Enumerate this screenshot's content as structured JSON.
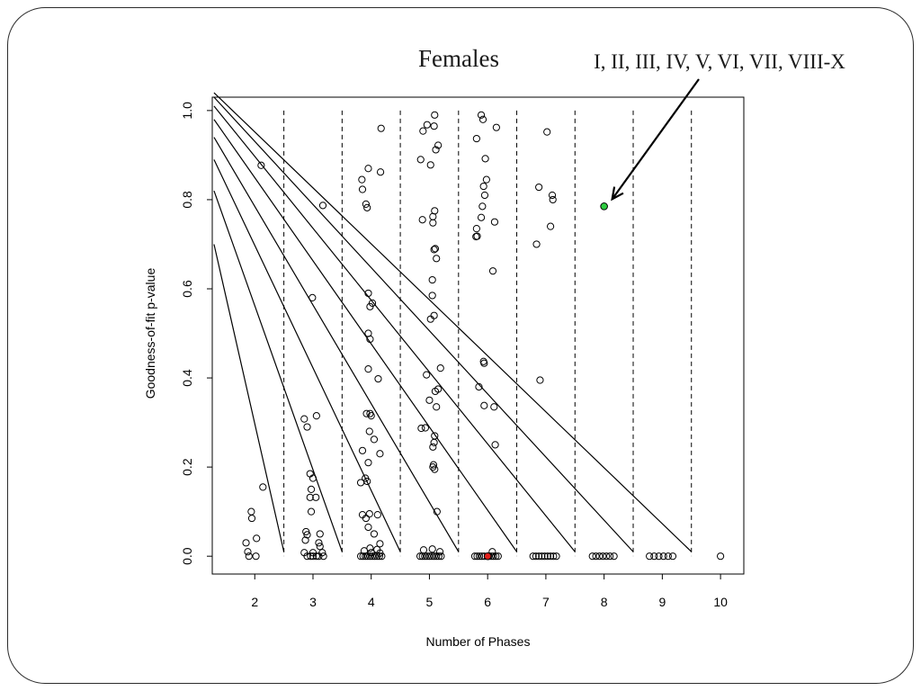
{
  "slide": {
    "title": "Females",
    "annotation": "I, II, III, IV, V, VI, VII, VIII-X"
  },
  "colors": {
    "highlight_green": "#2ecc40",
    "highlight_red": "#e0201b",
    "ink": "#000000",
    "frame": "#2b2b2b"
  },
  "chart_data": {
    "type": "scatter",
    "title": "",
    "xlabel": "Number of Phases",
    "ylabel": "Goodness-of-fit p-value",
    "xlim": [
      1.27,
      10.4
    ],
    "ylim": [
      -0.04,
      1.03
    ],
    "x_ticks": [
      2,
      3,
      4,
      5,
      6,
      7,
      8,
      9,
      10
    ],
    "y_ticks": [
      0.0,
      0.2,
      0.4,
      0.6,
      0.8,
      1.0
    ],
    "y_tick_labels": [
      "0.0",
      "0.2",
      "0.4",
      "0.6",
      "0.8",
      "1.0"
    ],
    "grid": false,
    "legend": "none",
    "dashed_vlines": [
      2.5,
      3.5,
      4.5,
      5.5,
      6.5,
      7.5,
      8.5,
      9.5
    ],
    "diagonal_lines": [
      {
        "x1": 1.3,
        "y1": 0.7,
        "x2": 2.5,
        "y2": 0.01
      },
      {
        "x1": 1.3,
        "y1": 0.82,
        "x2": 3.5,
        "y2": 0.01
      },
      {
        "x1": 1.3,
        "y1": 0.89,
        "x2": 4.5,
        "y2": 0.01
      },
      {
        "x1": 1.3,
        "y1": 0.94,
        "x2": 5.5,
        "y2": 0.01
      },
      {
        "x1": 1.3,
        "y1": 0.98,
        "x2": 6.5,
        "y2": 0.01
      },
      {
        "x1": 1.3,
        "y1": 1.01,
        "x2": 7.5,
        "y2": 0.01
      },
      {
        "x1": 1.3,
        "y1": 1.03,
        "x2": 8.5,
        "y2": 0.01
      },
      {
        "x1": 1.3,
        "y1": 1.04,
        "x2": 9.5,
        "y2": 0.01
      }
    ],
    "points": [
      [
        2.11,
        0.877
      ],
      [
        2.14,
        0.155
      ],
      [
        1.94,
        0.1
      ],
      [
        1.95,
        0.085
      ],
      [
        2.03,
        0.04
      ],
      [
        1.85,
        0.03
      ],
      [
        1.88,
        0.01
      ],
      [
        1.9,
        0.0
      ],
      [
        2.02,
        0.0
      ],
      [
        3.17,
        0.787
      ],
      [
        2.99,
        0.58
      ],
      [
        3.06,
        0.315
      ],
      [
        2.85,
        0.308
      ],
      [
        2.9,
        0.29
      ],
      [
        2.95,
        0.185
      ],
      [
        3.0,
        0.175
      ],
      [
        2.97,
        0.15
      ],
      [
        2.95,
        0.132
      ],
      [
        3.05,
        0.132
      ],
      [
        2.97,
        0.1
      ],
      [
        2.88,
        0.055
      ],
      [
        2.9,
        0.048
      ],
      [
        3.12,
        0.05
      ],
      [
        2.87,
        0.036
      ],
      [
        3.1,
        0.03
      ],
      [
        3.12,
        0.022
      ],
      [
        2.85,
        0.008
      ],
      [
        3.0,
        0.008
      ],
      [
        3.16,
        0.008
      ],
      [
        2.9,
        0.0
      ],
      [
        2.96,
        0.0
      ],
      [
        3.0,
        0.0
      ],
      [
        3.06,
        0.0
      ],
      [
        3.1,
        0.0
      ],
      [
        3.18,
        0.0
      ],
      [
        4.17,
        0.96
      ],
      [
        3.95,
        0.87
      ],
      [
        4.16,
        0.862
      ],
      [
        3.84,
        0.845
      ],
      [
        3.85,
        0.823
      ],
      [
        3.91,
        0.79
      ],
      [
        3.93,
        0.782
      ],
      [
        3.95,
        0.59
      ],
      [
        4.02,
        0.568
      ],
      [
        3.98,
        0.56
      ],
      [
        3.95,
        0.5
      ],
      [
        3.98,
        0.487
      ],
      [
        3.95,
        0.42
      ],
      [
        4.12,
        0.398
      ],
      [
        3.92,
        0.32
      ],
      [
        3.98,
        0.32
      ],
      [
        4.0,
        0.315
      ],
      [
        3.97,
        0.28
      ],
      [
        4.05,
        0.262
      ],
      [
        3.85,
        0.237
      ],
      [
        4.15,
        0.23
      ],
      [
        3.95,
        0.21
      ],
      [
        3.9,
        0.175
      ],
      [
        3.93,
        0.168
      ],
      [
        3.82,
        0.165
      ],
      [
        3.97,
        0.095
      ],
      [
        3.85,
        0.093
      ],
      [
        3.91,
        0.085
      ],
      [
        4.11,
        0.093
      ],
      [
        3.95,
        0.065
      ],
      [
        4.05,
        0.05
      ],
      [
        4.15,
        0.028
      ],
      [
        3.98,
        0.018
      ],
      [
        4.1,
        0.015
      ],
      [
        3.88,
        0.012
      ],
      [
        4.0,
        0.008
      ],
      [
        4.15,
        0.007
      ],
      [
        3.82,
        0.0
      ],
      [
        3.86,
        0.0
      ],
      [
        3.9,
        0.0
      ],
      [
        3.94,
        0.0
      ],
      [
        3.98,
        0.0
      ],
      [
        4.02,
        0.0
      ],
      [
        4.06,
        0.0
      ],
      [
        4.1,
        0.0
      ],
      [
        4.14,
        0.0
      ],
      [
        4.18,
        0.0
      ],
      [
        5.09,
        0.99
      ],
      [
        4.96,
        0.968
      ],
      [
        5.08,
        0.965
      ],
      [
        4.89,
        0.954
      ],
      [
        5.15,
        0.922
      ],
      [
        5.11,
        0.912
      ],
      [
        4.85,
        0.89
      ],
      [
        5.02,
        0.878
      ],
      [
        5.09,
        0.775
      ],
      [
        5.06,
        0.762
      ],
      [
        4.88,
        0.755
      ],
      [
        5.06,
        0.748
      ],
      [
        5.1,
        0.69
      ],
      [
        5.08,
        0.688
      ],
      [
        5.12,
        0.668
      ],
      [
        5.05,
        0.62
      ],
      [
        5.05,
        0.585
      ],
      [
        5.08,
        0.54
      ],
      [
        5.02,
        0.532
      ],
      [
        5.19,
        0.422
      ],
      [
        4.95,
        0.407
      ],
      [
        5.1,
        0.37
      ],
      [
        5.15,
        0.375
      ],
      [
        5.0,
        0.35
      ],
      [
        5.12,
        0.335
      ],
      [
        4.93,
        0.288
      ],
      [
        4.86,
        0.287
      ],
      [
        5.09,
        0.27
      ],
      [
        5.08,
        0.255
      ],
      [
        5.06,
        0.245
      ],
      [
        5.07,
        0.205
      ],
      [
        5.06,
        0.2
      ],
      [
        5.09,
        0.195
      ],
      [
        5.13,
        0.1
      ],
      [
        5.05,
        0.016
      ],
      [
        4.9,
        0.014
      ],
      [
        5.18,
        0.01
      ],
      [
        4.84,
        0.0
      ],
      [
        4.88,
        0.0
      ],
      [
        4.92,
        0.0
      ],
      [
        4.96,
        0.0
      ],
      [
        5.0,
        0.0
      ],
      [
        5.04,
        0.0
      ],
      [
        5.08,
        0.0
      ],
      [
        5.12,
        0.0
      ],
      [
        5.16,
        0.0
      ],
      [
        5.2,
        0.0
      ],
      [
        5.89,
        0.99
      ],
      [
        5.92,
        0.98
      ],
      [
        6.15,
        0.962
      ],
      [
        5.81,
        0.937
      ],
      [
        5.96,
        0.892
      ],
      [
        5.98,
        0.845
      ],
      [
        5.93,
        0.83
      ],
      [
        5.95,
        0.81
      ],
      [
        5.91,
        0.785
      ],
      [
        5.89,
        0.76
      ],
      [
        6.12,
        0.75
      ],
      [
        5.81,
        0.735
      ],
      [
        5.82,
        0.718
      ],
      [
        5.8,
        0.717
      ],
      [
        6.09,
        0.64
      ],
      [
        5.93,
        0.437
      ],
      [
        5.94,
        0.433
      ],
      [
        5.85,
        0.38
      ],
      [
        5.94,
        0.338
      ],
      [
        6.11,
        0.335
      ],
      [
        6.13,
        0.25
      ],
      [
        6.08,
        0.01
      ],
      [
        5.78,
        0.0
      ],
      [
        5.82,
        0.0
      ],
      [
        5.86,
        0.0
      ],
      [
        5.9,
        0.0
      ],
      [
        5.94,
        0.0
      ],
      [
        6.02,
        0.0
      ],
      [
        6.06,
        0.0
      ],
      [
        6.1,
        0.0
      ],
      [
        6.14,
        0.0
      ],
      [
        6.18,
        0.0
      ],
      [
        7.02,
        0.952
      ],
      [
        6.88,
        0.828
      ],
      [
        7.11,
        0.81
      ],
      [
        7.12,
        0.8
      ],
      [
        7.08,
        0.74
      ],
      [
        6.84,
        0.7
      ],
      [
        6.9,
        0.395
      ],
      [
        6.78,
        0.0
      ],
      [
        6.83,
        0.0
      ],
      [
        6.88,
        0.0
      ],
      [
        6.93,
        0.0
      ],
      [
        6.98,
        0.0
      ],
      [
        7.03,
        0.0
      ],
      [
        7.08,
        0.0
      ],
      [
        7.13,
        0.0
      ],
      [
        7.18,
        0.0
      ],
      [
        7.8,
        0.0
      ],
      [
        7.86,
        0.0
      ],
      [
        7.92,
        0.0
      ],
      [
        7.98,
        0.0
      ],
      [
        8.04,
        0.0
      ],
      [
        8.1,
        0.0
      ],
      [
        8.17,
        0.0
      ],
      [
        8.78,
        0.0
      ],
      [
        8.86,
        0.0
      ],
      [
        8.94,
        0.0
      ],
      [
        9.02,
        0.0
      ],
      [
        9.1,
        0.0
      ],
      [
        9.18,
        0.0
      ],
      [
        10.0,
        0.0
      ]
    ],
    "highlighted_points": [
      {
        "x": 8.0,
        "y": 0.785,
        "color": "#2ecc40"
      },
      {
        "x": 6.0,
        "y": 0.0,
        "color": "#e0201b"
      }
    ]
  }
}
